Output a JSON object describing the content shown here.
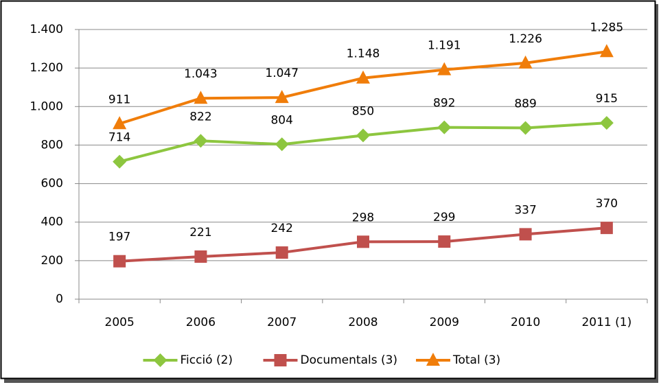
{
  "chart_data": {
    "type": "line",
    "categories": [
      "2005",
      "2006",
      "2007",
      "2008",
      "2009",
      "2010",
      "2011 (1)"
    ],
    "series": [
      {
        "name": "Ficció (2)",
        "color": "#8dc63f",
        "marker": "diamond",
        "values": [
          714,
          822,
          804,
          850,
          892,
          889,
          915
        ]
      },
      {
        "name": "Documentals (3)",
        "color": "#c0504d",
        "marker": "square",
        "values": [
          197,
          221,
          242,
          298,
          299,
          337,
          370
        ]
      },
      {
        "name": "Total (3)",
        "color": "#f07d0a",
        "marker": "triangle",
        "values": [
          911,
          1043,
          1047,
          1148,
          1191,
          1226,
          1285
        ],
        "value_labels": [
          "911",
          "1.043",
          "1.047",
          "1.148",
          "1.191",
          "1.226",
          "1.285"
        ]
      }
    ],
    "ylim": [
      0,
      1400
    ],
    "yticks": [
      0,
      200,
      400,
      600,
      800,
      {
        "value": 1000,
        "label": "1.000"
      },
      {
        "value": 1200,
        "label": "1.200"
      },
      {
        "value": 1400,
        "label": "1.400"
      }
    ],
    "grid": true,
    "legend": "bottom"
  }
}
